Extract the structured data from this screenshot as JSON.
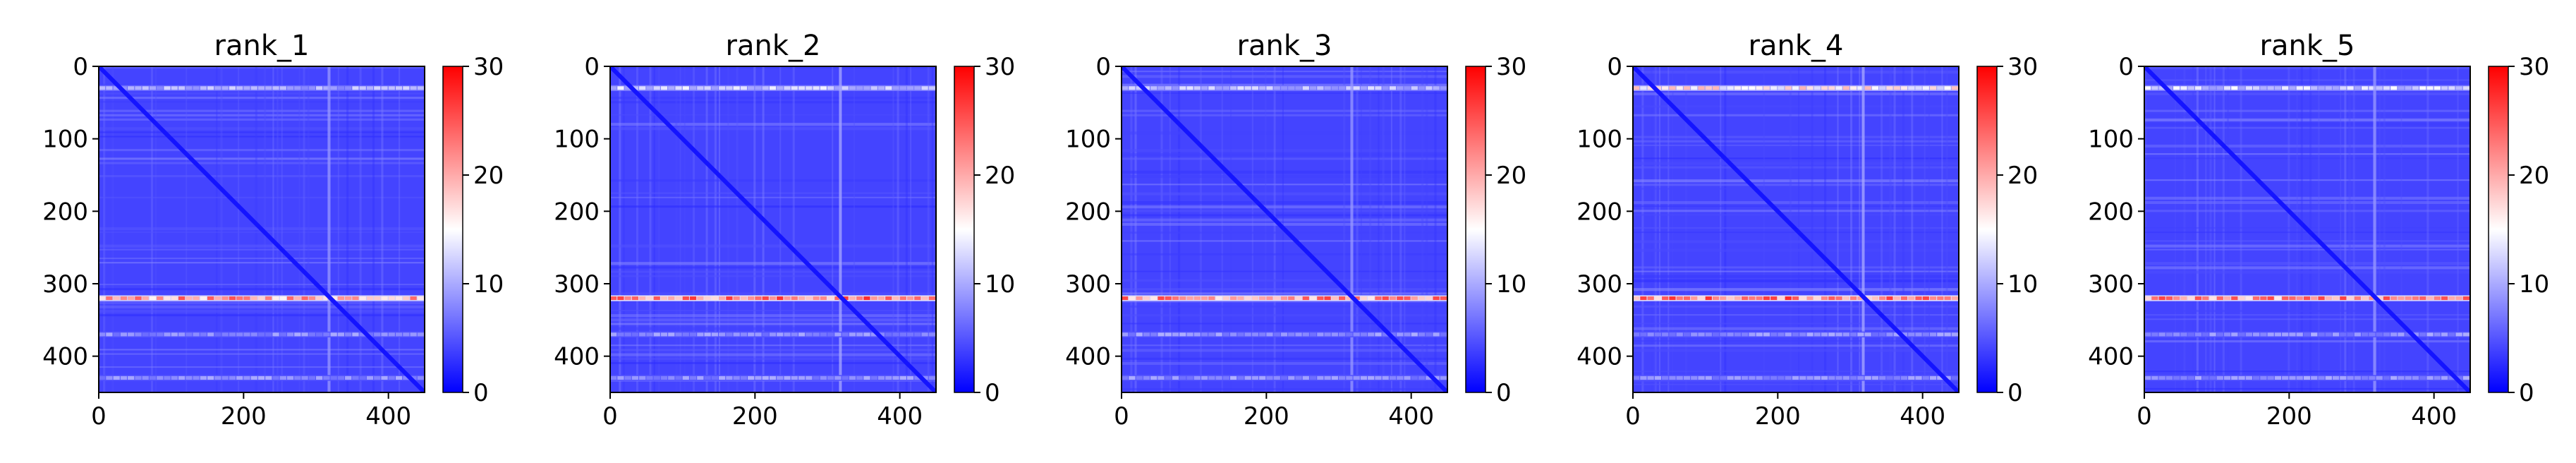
{
  "colors": {
    "low": "#0000ff",
    "mid": "#ffffff",
    "high": "#ff0000",
    "diagonal": "#1414ff"
  },
  "chart_data": [
    {
      "type": "heatmap",
      "title": "rank_1",
      "size": 450,
      "xlim": [
        0,
        450
      ],
      "ylim": [
        450,
        0
      ],
      "xticks": [
        0,
        200,
        400
      ],
      "yticks": [
        0,
        100,
        200,
        300,
        400
      ],
      "colorbar": {
        "min": 0,
        "max": 30,
        "ticks": [
          0,
          10,
          20,
          30
        ],
        "colormap": "bwr"
      },
      "typical_value": 4,
      "features": [
        {
          "kind": "band",
          "orientation": "row",
          "at": 30,
          "value": 11
        },
        {
          "kind": "band",
          "orientation": "row",
          "at": 320,
          "value": 22
        },
        {
          "kind": "band",
          "orientation": "col",
          "at": 318,
          "value": 9
        },
        {
          "kind": "band",
          "orientation": "row",
          "at": 370,
          "value": 9
        },
        {
          "kind": "band",
          "orientation": "row",
          "at": 430,
          "value": 9
        },
        {
          "kind": "diagonal",
          "value": 0
        }
      ]
    },
    {
      "type": "heatmap",
      "title": "rank_2",
      "size": 450,
      "xlim": [
        0,
        450
      ],
      "ylim": [
        450,
        0
      ],
      "xticks": [
        0,
        200,
        400
      ],
      "yticks": [
        0,
        100,
        200,
        300,
        400
      ],
      "colorbar": {
        "min": 0,
        "max": 30,
        "ticks": [
          0,
          10,
          20,
          30
        ],
        "colormap": "bwr"
      },
      "typical_value": 4,
      "features": [
        {
          "kind": "band",
          "orientation": "row",
          "at": 30,
          "value": 13
        },
        {
          "kind": "band",
          "orientation": "row",
          "at": 320,
          "value": 24
        },
        {
          "kind": "band",
          "orientation": "col",
          "at": 318,
          "value": 10
        },
        {
          "kind": "band",
          "orientation": "row",
          "at": 370,
          "value": 9
        },
        {
          "kind": "band",
          "orientation": "row",
          "at": 430,
          "value": 9
        },
        {
          "kind": "diagonal",
          "value": 0
        }
      ]
    },
    {
      "type": "heatmap",
      "title": "rank_3",
      "size": 450,
      "xlim": [
        0,
        450
      ],
      "ylim": [
        450,
        0
      ],
      "xticks": [
        0,
        200,
        400
      ],
      "yticks": [
        0,
        100,
        200,
        300,
        400
      ],
      "colorbar": {
        "min": 0,
        "max": 30,
        "ticks": [
          0,
          10,
          20,
          30
        ],
        "colormap": "bwr"
      },
      "typical_value": 4,
      "features": [
        {
          "kind": "band",
          "orientation": "row",
          "at": 30,
          "value": 12
        },
        {
          "kind": "band",
          "orientation": "row",
          "at": 320,
          "value": 23
        },
        {
          "kind": "band",
          "orientation": "col",
          "at": 318,
          "value": 9
        },
        {
          "kind": "band",
          "orientation": "row",
          "at": 370,
          "value": 9
        },
        {
          "kind": "band",
          "orientation": "row",
          "at": 430,
          "value": 9
        },
        {
          "kind": "diagonal",
          "value": 0
        }
      ]
    },
    {
      "type": "heatmap",
      "title": "rank_4",
      "size": 450,
      "xlim": [
        0,
        450
      ],
      "ylim": [
        450,
        0
      ],
      "xticks": [
        0,
        200,
        400
      ],
      "yticks": [
        0,
        100,
        200,
        300,
        400
      ],
      "colorbar": {
        "min": 0,
        "max": 30,
        "ticks": [
          0,
          10,
          20,
          30
        ],
        "colormap": "bwr"
      },
      "typical_value": 4,
      "features": [
        {
          "kind": "band",
          "orientation": "row",
          "at": 30,
          "value": 17
        },
        {
          "kind": "band",
          "orientation": "row",
          "at": 320,
          "value": 24
        },
        {
          "kind": "band",
          "orientation": "col",
          "at": 318,
          "value": 10
        },
        {
          "kind": "band",
          "orientation": "row",
          "at": 370,
          "value": 9
        },
        {
          "kind": "band",
          "orientation": "row",
          "at": 430,
          "value": 9
        },
        {
          "kind": "diagonal",
          "value": 0
        }
      ]
    },
    {
      "type": "heatmap",
      "title": "rank_5",
      "size": 450,
      "xlim": [
        0,
        450
      ],
      "ylim": [
        450,
        0
      ],
      "xticks": [
        0,
        200,
        400
      ],
      "yticks": [
        0,
        100,
        200,
        300,
        400
      ],
      "colorbar": {
        "min": 0,
        "max": 30,
        "ticks": [
          0,
          10,
          20,
          30
        ],
        "colormap": "bwr"
      },
      "typical_value": 4,
      "features": [
        {
          "kind": "band",
          "orientation": "row",
          "at": 30,
          "value": 13
        },
        {
          "kind": "band",
          "orientation": "row",
          "at": 320,
          "value": 23
        },
        {
          "kind": "band",
          "orientation": "col",
          "at": 318,
          "value": 9
        },
        {
          "kind": "band",
          "orientation": "row",
          "at": 370,
          "value": 9
        },
        {
          "kind": "band",
          "orientation": "row",
          "at": 430,
          "value": 9
        },
        {
          "kind": "diagonal",
          "value": 0
        }
      ]
    }
  ]
}
